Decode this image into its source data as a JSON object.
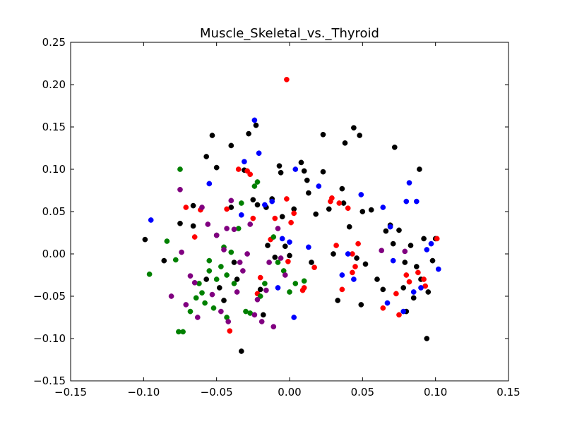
{
  "chart_data": {
    "type": "scatter",
    "title": "Muscle_Skeletal_vs._Thyroid",
    "xlabel": "",
    "ylabel": "",
    "xlim": [
      -0.15,
      0.15
    ],
    "ylim": [
      -0.15,
      0.25
    ],
    "xticks": [
      -0.15,
      -0.1,
      -0.05,
      0.0,
      0.05,
      0.1,
      0.15
    ],
    "xtick_labels": [
      "−0.15",
      "−0.10",
      "−0.05",
      "0.00",
      "0.05",
      "0.10",
      "0.15"
    ],
    "yticks": [
      -0.15,
      -0.1,
      -0.05,
      0.0,
      0.05,
      0.1,
      0.15,
      0.2,
      0.25
    ],
    "ytick_labels": [
      "−0.15",
      "−0.10",
      "−0.05",
      "0.00",
      "0.05",
      "0.10",
      "0.15",
      "0.20",
      "0.25"
    ],
    "grid": false,
    "legend": null,
    "series": [
      {
        "name": "black",
        "color": "#000000",
        "points": [
          [
            -0.099,
            0.017
          ],
          [
            -0.086,
            -0.008
          ],
          [
            -0.075,
            0.036
          ],
          [
            -0.066,
            0.057
          ],
          [
            -0.066,
            0.033
          ],
          [
            -0.057,
            0.115
          ],
          [
            -0.057,
            -0.03
          ],
          [
            -0.053,
            0.14
          ],
          [
            -0.05,
            0.102
          ],
          [
            -0.05,
            0.022
          ],
          [
            -0.048,
            -0.04
          ],
          [
            -0.045,
            -0.055
          ],
          [
            -0.04,
            0.128
          ],
          [
            -0.04,
            0.055
          ],
          [
            -0.038,
            -0.01
          ],
          [
            -0.036,
            -0.03
          ],
          [
            -0.033,
            -0.115
          ],
          [
            -0.031,
            0.099
          ],
          [
            -0.028,
            0.142
          ],
          [
            -0.025,
            0.064
          ],
          [
            -0.023,
            0.152
          ],
          [
            -0.022,
            0.058
          ],
          [
            -0.02,
            -0.042
          ],
          [
            -0.018,
            -0.072
          ],
          [
            -0.016,
            0.055
          ],
          [
            -0.015,
            0.01
          ],
          [
            -0.012,
            0.065
          ],
          [
            -0.01,
            -0.004
          ],
          [
            -0.007,
            0.104
          ],
          [
            -0.006,
            0.096
          ],
          [
            -0.005,
            0.044
          ],
          [
            -0.003,
            0.009
          ],
          [
            0.0,
            -0.002
          ],
          [
            0.003,
            0.053
          ],
          [
            0.008,
            0.108
          ],
          [
            0.01,
            0.098
          ],
          [
            0.012,
            0.087
          ],
          [
            0.013,
            0.072
          ],
          [
            0.015,
            -0.01
          ],
          [
            0.018,
            0.047
          ],
          [
            0.023,
            0.141
          ],
          [
            0.023,
            0.097
          ],
          [
            0.027,
            0.053
          ],
          [
            0.03,
            0.0
          ],
          [
            0.033,
            -0.055
          ],
          [
            0.036,
            0.077
          ],
          [
            0.037,
            0.06
          ],
          [
            0.038,
            0.131
          ],
          [
            0.041,
            0.032
          ],
          [
            0.044,
            0.149
          ],
          [
            0.046,
            -0.005
          ],
          [
            0.048,
            0.14
          ],
          [
            0.049,
            -0.06
          ],
          [
            0.05,
            0.05
          ],
          [
            0.052,
            -0.012
          ],
          [
            0.056,
            0.052
          ],
          [
            0.06,
            -0.03
          ],
          [
            0.064,
            -0.042
          ],
          [
            0.066,
            0.027
          ],
          [
            0.069,
            0.034
          ],
          [
            0.071,
            0.012
          ],
          [
            0.072,
            0.126
          ],
          [
            0.075,
            0.028
          ],
          [
            0.078,
            -0.04
          ],
          [
            0.079,
            -0.01
          ],
          [
            0.08,
            -0.068
          ],
          [
            0.083,
            0.01
          ],
          [
            0.085,
            -0.052
          ],
          [
            0.087,
            -0.015
          ],
          [
            0.089,
            0.1
          ],
          [
            0.09,
            -0.03
          ],
          [
            0.092,
            0.018
          ],
          [
            0.094,
            -0.1
          ],
          [
            0.095,
            -0.045
          ],
          [
            0.098,
            -0.008
          ],
          [
            0.1,
            0.018
          ]
        ]
      },
      {
        "name": "red",
        "color": "#ff0000",
        "points": [
          [
            -0.071,
            0.055
          ],
          [
            -0.065,
            0.02
          ],
          [
            -0.061,
            0.052
          ],
          [
            -0.043,
            0.053
          ],
          [
            -0.035,
            0.1
          ],
          [
            -0.029,
            0.098
          ],
          [
            -0.027,
            0.094
          ],
          [
            -0.025,
            0.042
          ],
          [
            -0.022,
            -0.047
          ],
          [
            -0.02,
            -0.028
          ],
          [
            -0.013,
            0.017
          ],
          [
            -0.01,
            0.042
          ],
          [
            -0.002,
            0.065
          ],
          [
            -0.001,
            -0.009
          ],
          [
            0.001,
            0.037
          ],
          [
            0.003,
            0.048
          ],
          [
            -0.002,
            0.206
          ],
          [
            0.009,
            -0.043
          ],
          [
            0.017,
            -0.016
          ],
          [
            0.028,
            0.062
          ],
          [
            0.029,
            0.066
          ],
          [
            0.032,
            0.01
          ],
          [
            0.034,
            0.06
          ],
          [
            0.036,
            -0.042
          ],
          [
            0.04,
            0.054
          ],
          [
            0.045,
            -0.015
          ],
          [
            0.047,
            0.012
          ],
          [
            0.043,
            -0.022
          ],
          [
            0.064,
            -0.064
          ],
          [
            0.073,
            -0.047
          ],
          [
            0.075,
            -0.072
          ],
          [
            0.08,
            -0.025
          ],
          [
            0.082,
            -0.033
          ],
          [
            0.088,
            -0.022
          ],
          [
            0.092,
            -0.03
          ],
          [
            0.093,
            -0.038
          ],
          [
            0.101,
            0.018
          ],
          [
            -0.041,
            -0.091
          ],
          [
            0.01,
            -0.04
          ],
          [
            0.043,
            0.0
          ]
        ]
      },
      {
        "name": "blue",
        "color": "#0000ff",
        "points": [
          [
            -0.095,
            0.04
          ],
          [
            -0.055,
            0.083
          ],
          [
            -0.033,
            0.046
          ],
          [
            -0.031,
            0.109
          ],
          [
            -0.024,
            0.158
          ],
          [
            -0.021,
            0.119
          ],
          [
            -0.017,
            0.058
          ],
          [
            -0.012,
            0.062
          ],
          [
            -0.005,
            0.018
          ],
          [
            0.0,
            0.014
          ],
          [
            0.003,
            -0.075
          ],
          [
            0.004,
            0.1
          ],
          [
            0.013,
            0.008
          ],
          [
            0.02,
            0.08
          ],
          [
            0.04,
            0.0
          ],
          [
            0.044,
            -0.03
          ],
          [
            0.049,
            0.07
          ],
          [
            0.064,
            0.055
          ],
          [
            0.067,
            -0.058
          ],
          [
            0.069,
            0.032
          ],
          [
            0.071,
            -0.008
          ],
          [
            0.078,
            -0.068
          ],
          [
            0.08,
            0.062
          ],
          [
            0.082,
            0.084
          ],
          [
            0.087,
            0.062
          ],
          [
            0.09,
            -0.04
          ],
          [
            0.094,
            0.005
          ],
          [
            0.097,
            0.012
          ],
          [
            0.102,
            -0.018
          ],
          [
            0.085,
            -0.045
          ],
          [
            -0.008,
            -0.04
          ],
          [
            0.036,
            -0.025
          ]
        ]
      },
      {
        "name": "green",
        "color": "#008000",
        "points": [
          [
            -0.096,
            -0.024
          ],
          [
            -0.084,
            0.015
          ],
          [
            -0.078,
            -0.007
          ],
          [
            -0.075,
            0.1
          ],
          [
            -0.076,
            -0.092
          ],
          [
            -0.073,
            -0.092
          ],
          [
            -0.068,
            -0.068
          ],
          [
            -0.064,
            -0.052
          ],
          [
            -0.06,
            -0.046
          ],
          [
            -0.058,
            -0.058
          ],
          [
            -0.055,
            -0.008
          ],
          [
            -0.052,
            -0.064
          ],
          [
            -0.05,
            -0.03
          ],
          [
            -0.047,
            -0.015
          ],
          [
            -0.045,
            0.008
          ],
          [
            -0.043,
            -0.025
          ],
          [
            -0.04,
            0.002
          ],
          [
            -0.038,
            -0.035
          ],
          [
            -0.035,
            0.03
          ],
          [
            -0.033,
            0.06
          ],
          [
            -0.03,
            -0.068
          ],
          [
            -0.027,
            -0.07
          ],
          [
            -0.024,
            0.08
          ],
          [
            -0.022,
            0.085
          ],
          [
            -0.02,
            -0.05
          ],
          [
            -0.017,
            -0.035
          ],
          [
            -0.011,
            0.02
          ],
          [
            -0.008,
            -0.01
          ],
          [
            -0.004,
            -0.02
          ],
          [
            0.0,
            -0.045
          ],
          [
            0.004,
            -0.035
          ],
          [
            -0.055,
            -0.02
          ],
          [
            -0.043,
            -0.075
          ],
          [
            -0.062,
            -0.035
          ],
          [
            0.01,
            -0.032
          ]
        ]
      },
      {
        "name": "purple",
        "color": "#800080",
        "points": [
          [
            -0.081,
            -0.05
          ],
          [
            -0.075,
            0.076
          ],
          [
            -0.074,
            0.002
          ],
          [
            -0.071,
            -0.06
          ],
          [
            -0.068,
            -0.026
          ],
          [
            -0.063,
            -0.075
          ],
          [
            -0.06,
            0.055
          ],
          [
            -0.056,
            0.035
          ],
          [
            -0.053,
            -0.048
          ],
          [
            -0.05,
            0.022
          ],
          [
            -0.047,
            -0.068
          ],
          [
            -0.045,
            0.005
          ],
          [
            -0.043,
            0.03
          ],
          [
            -0.04,
            0.063
          ],
          [
            -0.038,
            0.029
          ],
          [
            -0.036,
            -0.045
          ],
          [
            -0.034,
            -0.01
          ],
          [
            -0.032,
            -0.02
          ],
          [
            -0.029,
            0.0
          ],
          [
            -0.027,
            0.035
          ],
          [
            -0.024,
            -0.072
          ],
          [
            -0.022,
            -0.054
          ],
          [
            -0.019,
            -0.08
          ],
          [
            -0.016,
            -0.043
          ],
          [
            -0.014,
            -0.01
          ],
          [
            -0.011,
            -0.086
          ],
          [
            -0.008,
            0.03
          ],
          [
            -0.006,
            -0.005
          ],
          [
            -0.003,
            -0.025
          ],
          [
            0.063,
            0.004
          ],
          [
            0.079,
            0.003
          ],
          [
            -0.065,
            -0.034
          ],
          [
            -0.042,
            -0.08
          ]
        ]
      }
    ]
  }
}
